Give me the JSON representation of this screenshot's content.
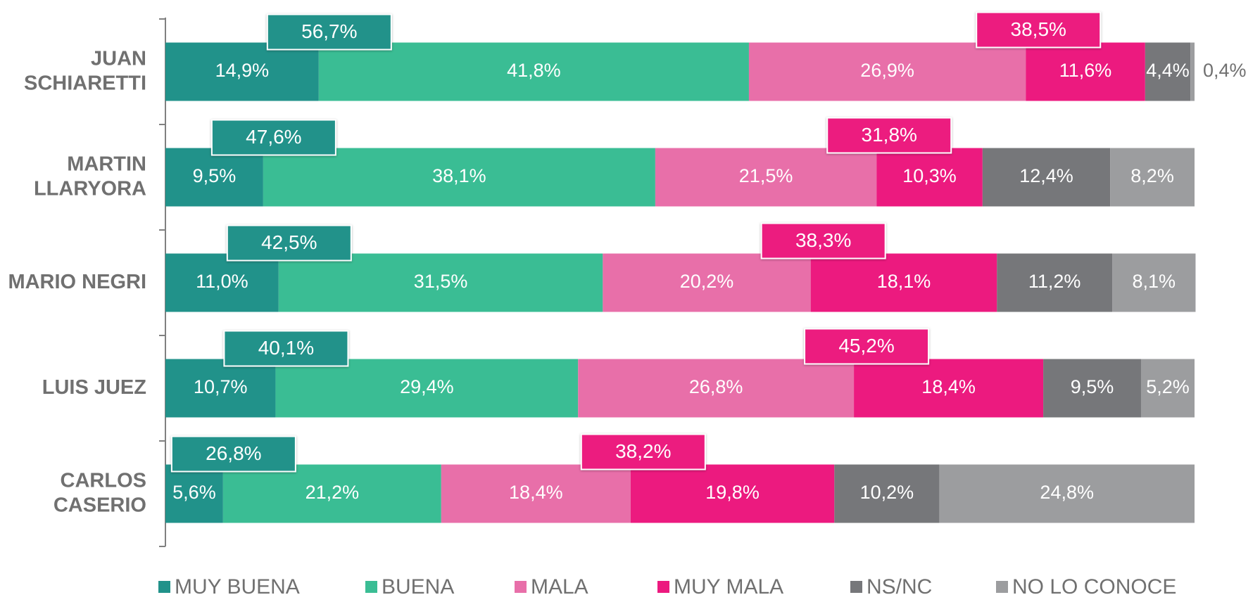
{
  "chart_data": {
    "type": "stacked-bar-horizontal",
    "categories": [
      "JUAN\nSCHIARETTI",
      "MARTIN\nLLARYORA",
      "MARIO NEGRI",
      "LUIS JUEZ",
      "CARLOS\nCASERIO"
    ],
    "xlim": [
      0,
      100
    ],
    "series": [
      {
        "name": "MUY BUENA",
        "color": "#21928a",
        "values": [
          14.9,
          9.5,
          11.0,
          10.7,
          5.6
        ],
        "value_labels": [
          "14,9%",
          "9,5%",
          "11,0%",
          "10,7%",
          "5,6%"
        ]
      },
      {
        "name": "BUENA",
        "color": "#3abd94",
        "values": [
          41.8,
          38.1,
          31.5,
          29.4,
          21.2
        ],
        "value_labels": [
          "41,8%",
          "38,1%",
          "31,5%",
          "29,4%",
          "21,2%"
        ]
      },
      {
        "name": "MALA",
        "color": "#e86fa9",
        "values": [
          26.9,
          21.5,
          20.2,
          26.8,
          18.4
        ],
        "value_labels": [
          "26,9%",
          "21,5%",
          "20,2%",
          "26,8%",
          "18,4%"
        ]
      },
      {
        "name": "MUY MALA",
        "color": "#ec1a7f",
        "values": [
          11.6,
          10.3,
          18.1,
          18.4,
          19.8
        ],
        "value_labels": [
          "11,6%",
          "10,3%",
          "18,1%",
          "18,4%",
          "19,8%"
        ]
      },
      {
        "name": "NS/NC",
        "color": "#76777a",
        "values": [
          4.4,
          12.4,
          11.2,
          9.5,
          10.2
        ],
        "value_labels": [
          "4,4%",
          "12,4%",
          "11,2%",
          "9,5%",
          "10,2%"
        ]
      },
      {
        "name": "NO LO CONOCE",
        "color": "#9c9d9f",
        "values": [
          0.4,
          8.2,
          8.1,
          5.2,
          24.8
        ],
        "value_labels": [
          "0,4%",
          "8,2%",
          "8,1%",
          "5,2%",
          "24,8%"
        ]
      }
    ],
    "annotations": {
      "positive": {
        "color": "#21928a",
        "values": [
          56.7,
          47.6,
          42.5,
          40.1,
          26.8
        ],
        "value_labels": [
          "56,7%",
          "47,6%",
          "42,5%",
          "40,1%",
          "26,8%"
        ]
      },
      "negative": {
        "color": "#ec1a7f",
        "values": [
          38.5,
          31.8,
          38.3,
          45.2,
          38.2
        ],
        "value_labels": [
          "38,5%",
          "31,8%",
          "38,3%",
          "45,2%",
          "38,2%"
        ]
      }
    }
  }
}
